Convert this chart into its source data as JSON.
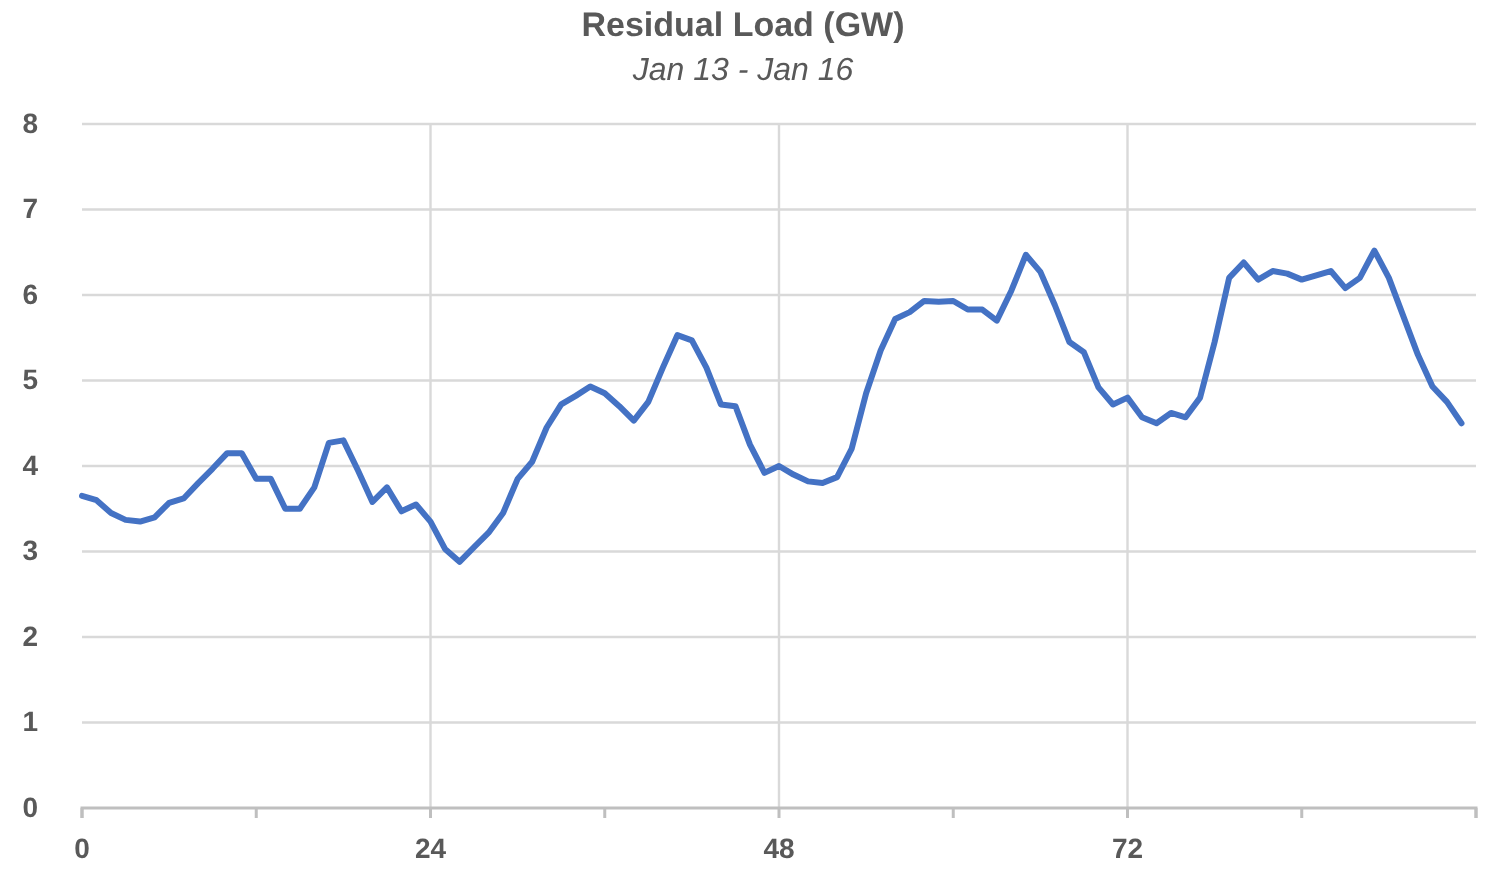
{
  "chart_data": {
    "type": "line",
    "title": "Residual Load (GW)",
    "subtitle": "Jan 13 - Jan 16",
    "x": [
      0,
      1,
      2,
      3,
      4,
      5,
      6,
      7,
      8,
      9,
      10,
      11,
      12,
      13,
      14,
      15,
      16,
      17,
      18,
      19,
      20,
      21,
      22,
      23,
      24,
      25,
      26,
      27,
      28,
      29,
      30,
      31,
      32,
      33,
      34,
      35,
      36,
      37,
      38,
      39,
      40,
      41,
      42,
      43,
      44,
      45,
      46,
      47,
      48,
      49,
      50,
      51,
      52,
      53,
      54,
      55,
      56,
      57,
      58,
      59,
      60,
      61,
      62,
      63,
      64,
      65,
      66,
      67,
      68,
      69,
      70,
      71,
      72,
      73,
      74,
      75,
      76,
      77,
      78,
      79,
      80,
      81,
      82,
      83,
      84,
      85,
      86,
      87,
      88,
      89,
      90,
      91,
      92,
      93,
      94,
      95
    ],
    "series": [
      {
        "color": "#4472c4",
        "values": [
          3.65,
          3.6,
          3.45,
          3.37,
          3.35,
          3.4,
          3.57,
          3.62,
          3.8,
          3.97,
          4.15,
          4.15,
          3.85,
          3.85,
          3.5,
          3.5,
          3.75,
          4.27,
          4.3,
          3.95,
          3.58,
          3.75,
          3.47,
          3.55,
          3.35,
          3.03,
          2.88,
          3.05,
          3.22,
          3.45,
          3.85,
          4.05,
          4.45,
          4.72,
          4.82,
          4.93,
          4.85,
          4.7,
          4.53,
          4.75,
          5.15,
          5.53,
          5.47,
          5.15,
          4.72,
          4.7,
          4.25,
          3.92,
          4.0,
          3.9,
          3.82,
          3.8,
          3.87,
          4.2,
          4.85,
          5.35,
          5.72,
          5.8,
          5.93,
          5.92,
          5.93,
          5.83,
          5.83,
          5.7,
          6.05,
          6.47,
          6.27,
          5.88,
          5.45,
          5.33,
          4.92,
          4.72,
          4.8,
          4.57,
          4.5,
          4.62,
          4.57,
          4.8,
          5.45,
          6.2,
          6.38,
          6.18,
          6.28,
          6.25,
          6.18,
          6.23,
          6.28,
          6.08,
          6.2,
          6.52,
          6.2,
          5.75,
          5.3,
          4.93,
          4.75,
          4.5
        ]
      }
    ],
    "xlim": [
      0,
      96
    ],
    "xticks": [
      0,
      {
        "value": 12,
        "label": null
      },
      24,
      {
        "value": 36,
        "label": null
      },
      48,
      {
        "value": 60,
        "label": null
      },
      72,
      {
        "value": 84,
        "label": null
      },
      {
        "value": 96,
        "label": null
      }
    ],
    "ylim": [
      0,
      8
    ],
    "yticks": [
      0,
      1,
      2,
      3,
      4,
      5,
      6,
      7,
      8
    ],
    "grid": true,
    "marker": "none",
    "line_style": "solid"
  }
}
